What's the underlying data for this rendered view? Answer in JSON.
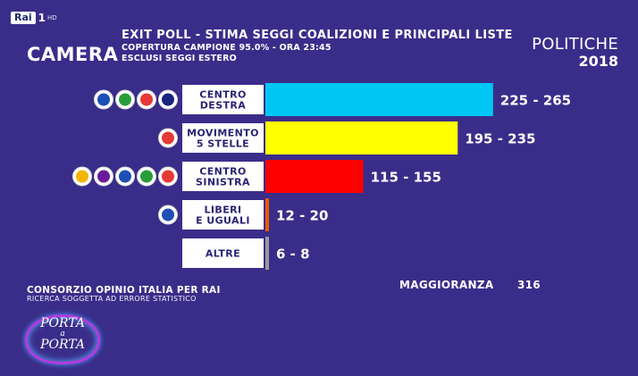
{
  "channel": {
    "name": "Rai",
    "number": "1",
    "suffix": "HD"
  },
  "header": {
    "chamber": "CAMERA",
    "title": "EXIT POLL - STIMA SEGGI COALIZIONI E PRINCIPALI LISTE",
    "coverage": "COPERTURA CAMPIONE 95.0% - ORA 23:45",
    "note": "ESCLUSI SEGGI ESTERO",
    "election_name": "POLITICHE",
    "election_year": "2018"
  },
  "chart_data": {
    "type": "bar",
    "orientation": "horizontal",
    "xlim": [
      0,
      300
    ],
    "series_label_unit": "seggi",
    "bars": [
      {
        "label_lines": [
          "CENTRO",
          "DESTRA"
        ],
        "min": 225,
        "max": 265,
        "range_text": "225 - 265",
        "color": "#00c6f4",
        "party_logos": 4
      },
      {
        "label_lines": [
          "MOVIMENTO",
          "5 STELLE"
        ],
        "min": 195,
        "max": 235,
        "range_text": "195 - 235",
        "color": "#ffff00",
        "party_logos": 1
      },
      {
        "label_lines": [
          "CENTRO",
          "SINISTRA"
        ],
        "min": 115,
        "max": 155,
        "range_text": "115 - 155",
        "color": "#ff0000",
        "party_logos": 5
      },
      {
        "label_lines": [
          "LIBERI",
          "E UGUALI"
        ],
        "min": 12,
        "max": 20,
        "range_text": "12 - 20",
        "color": "#e65a00",
        "party_logos": 1
      },
      {
        "label_lines": [
          "ALTRE"
        ],
        "min": 6,
        "max": 8,
        "range_text": "6 - 8",
        "color": "#9a9a9a",
        "party_logos": 0
      }
    ],
    "majority_label": "MAGGIORANZA",
    "majority_value": "316"
  },
  "footer": {
    "source": "CONSORZIO OPINIO ITALIA PER RAI",
    "disclaimer": "RICERCA SOGGETTA AD ERRORE STATISTICO"
  },
  "program": {
    "line1": "PORTA",
    "line2": "a",
    "line3": "PORTA"
  }
}
